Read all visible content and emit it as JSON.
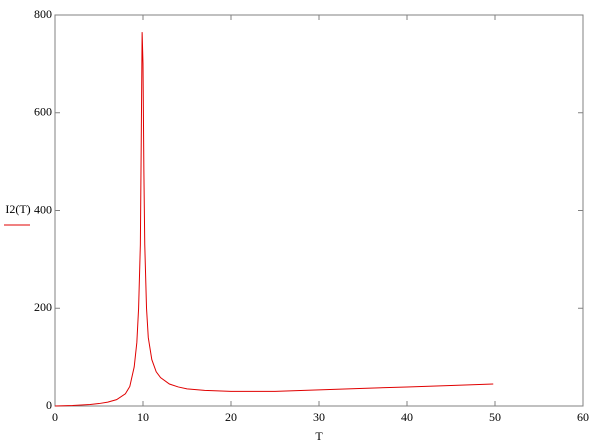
{
  "chart_data": {
    "type": "line",
    "x_label": "T",
    "y_label": "I2(T)",
    "x": [
      0,
      2,
      4,
      5,
      6,
      7,
      8,
      8.5,
      9,
      9.3,
      9.5,
      9.7,
      9.8,
      9.9,
      10,
      10.1,
      10.2,
      10.4,
      10.6,
      11,
      11.5,
      12,
      13,
      14,
      15,
      17,
      20,
      25,
      30,
      35,
      40,
      45,
      49.8
    ],
    "series": [
      {
        "color": "#e00000",
        "values": [
          0,
          1,
          3,
          5,
          8,
          13,
          25,
          40,
          80,
          130,
          200,
          330,
          540,
          765,
          700,
          480,
          330,
          200,
          140,
          95,
          70,
          58,
          45,
          39,
          35,
          32,
          30,
          30,
          33,
          36,
          39,
          42,
          45
        ]
      }
    ],
    "xlim": [
      0,
      60
    ],
    "xticks": [
      0,
      10,
      20,
      30,
      40,
      50,
      60
    ],
    "ylim": [
      0,
      800
    ],
    "yticks": [
      0,
      200,
      400,
      600,
      800
    ],
    "grid": false
  }
}
